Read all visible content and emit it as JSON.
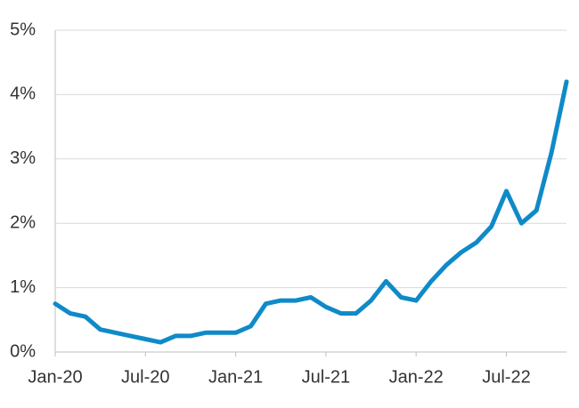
{
  "chart_data": {
    "type": "line",
    "x": [
      "2020-01",
      "2020-02",
      "2020-03",
      "2020-04",
      "2020-05",
      "2020-06",
      "2020-07",
      "2020-08",
      "2020-09",
      "2020-10",
      "2020-11",
      "2020-12",
      "2021-01",
      "2021-02",
      "2021-03",
      "2021-04",
      "2021-05",
      "2021-06",
      "2021-07",
      "2021-08",
      "2021-09",
      "2021-10",
      "2021-11",
      "2021-12",
      "2022-01",
      "2022-02",
      "2022-03",
      "2022-04",
      "2022-05",
      "2022-06",
      "2022-07",
      "2022-08",
      "2022-09",
      "2022-10",
      "2022-11"
    ],
    "series": [
      {
        "color": "#0f8ac8",
        "values": [
          0.75,
          0.6,
          0.55,
          0.35,
          0.3,
          0.25,
          0.2,
          0.15,
          0.25,
          0.25,
          0.3,
          0.3,
          0.3,
          0.4,
          0.75,
          0.8,
          0.8,
          0.85,
          0.7,
          0.6,
          0.6,
          0.8,
          1.1,
          0.85,
          0.8,
          1.1,
          1.35,
          1.55,
          1.7,
          1.95,
          2.5,
          2.0,
          2.2,
          3.1,
          4.2
        ]
      }
    ],
    "xlim": [
      "2020-01",
      "2022-11"
    ],
    "xticks": [
      {
        "value": "2020-01",
        "label": "Jan-20"
      },
      {
        "value": "2020-07",
        "label": "Jul-20"
      },
      {
        "value": "2021-01",
        "label": "Jan-21"
      },
      {
        "value": "2021-07",
        "label": "Jul-21"
      },
      {
        "value": "2022-01",
        "label": "Jan-22"
      },
      {
        "value": "2022-07",
        "label": "Jul-22"
      }
    ],
    "ylim": [
      0,
      5
    ],
    "yticks": [
      {
        "value": 0,
        "label": "0%"
      },
      {
        "value": 1,
        "label": "1%"
      },
      {
        "value": 2,
        "label": "2%"
      },
      {
        "value": 3,
        "label": "3%"
      },
      {
        "value": 4,
        "label": "4%"
      },
      {
        "value": 5,
        "label": "5%"
      }
    ],
    "grid": true
  }
}
